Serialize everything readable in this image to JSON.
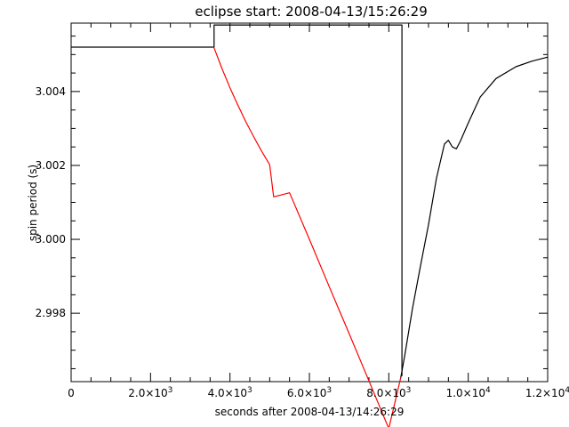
{
  "chart_data": {
    "type": "line",
    "title": "eclipse start: 2008-04-13/15:26:29",
    "xlabel": "seconds after 2008-04-13/14:26:29",
    "ylabel": "spin period (s)",
    "xlim": [
      0,
      12000
    ],
    "ylim": [
      2.99615,
      3.00585
    ],
    "x_ticks": [
      0,
      2000,
      4000,
      6000,
      8000,
      10000,
      12000
    ],
    "x_tick_labels": [
      {
        "base": "0",
        "exp": ""
      },
      {
        "base": "2.0×10",
        "exp": "3"
      },
      {
        "base": "4.0×10",
        "exp": "3"
      },
      {
        "base": "6.0×10",
        "exp": "3"
      },
      {
        "base": "8.0×10",
        "exp": "3"
      },
      {
        "base": "1.0×10",
        "exp": "4"
      },
      {
        "base": "1.2×10",
        "exp": "4"
      }
    ],
    "y_ticks": [
      2.998,
      3.0,
      3.002,
      3.004
    ],
    "y_tick_labels": [
      "2.998",
      "3.000",
      "3.002",
      "3.004"
    ],
    "series": [
      {
        "color": "#000000",
        "x": [
          0,
          3600,
          3600,
          8330,
          8330
        ],
        "y": [
          3.0052,
          3.0052,
          3.0058,
          3.0058,
          2.9963
        ]
      },
      {
        "color": "#ff0000",
        "x": [
          3600,
          3800,
          4000,
          4200,
          4400,
          4600,
          4800,
          5000,
          5100,
          5500,
          6000,
          6500,
          7000,
          7500,
          8000,
          8300
        ],
        "y": [
          3.00518,
          3.00462,
          3.0041,
          3.00363,
          3.00318,
          3.00277,
          3.00238,
          3.00202,
          3.00115,
          3.00126,
          3.0,
          2.99872,
          2.99745,
          2.99617,
          2.99488,
          2.99625
        ]
      },
      {
        "color": "#000000",
        "x": [
          8300,
          8400,
          8600,
          8800,
          9000,
          9200,
          9400,
          9500,
          9600,
          9700,
          9800,
          10000,
          10300,
          10700,
          11200,
          11600,
          12000
        ],
        "y": [
          2.99625,
          2.99685,
          2.99815,
          2.9993,
          3.0004,
          3.00165,
          3.00258,
          3.00268,
          3.0025,
          3.00245,
          3.00265,
          3.00315,
          3.00385,
          3.00435,
          3.00467,
          3.00482,
          3.00493
        ]
      }
    ],
    "grid": false,
    "legend": "none"
  }
}
